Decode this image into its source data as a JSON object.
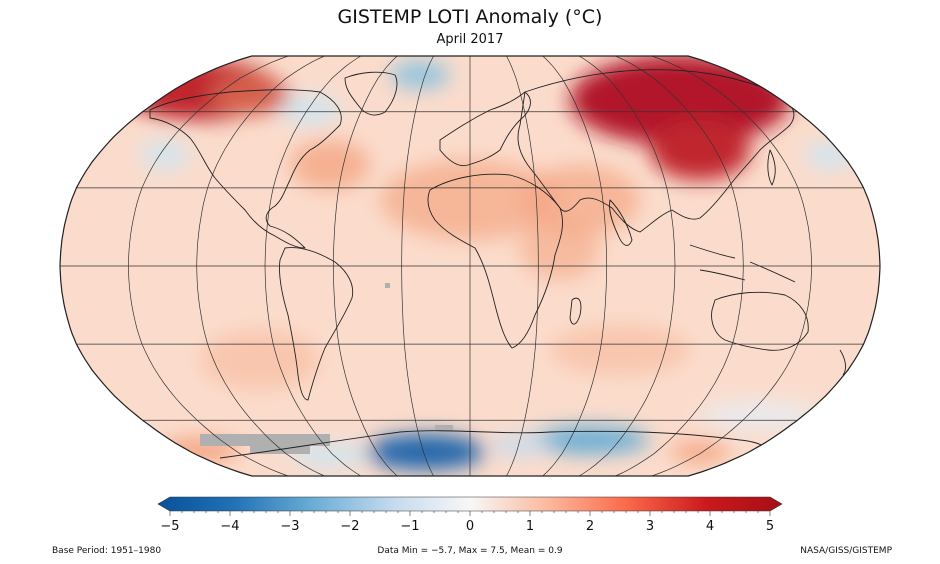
{
  "title": "GISTEMP LOTI Anomaly (°C)",
  "subtitle": "April 2017",
  "colorbar": {
    "ticks": [
      "−5",
      "−4",
      "−3",
      "−2",
      "−1",
      "0",
      "1",
      "2",
      "3",
      "4",
      "5"
    ],
    "min": -5,
    "max": 5,
    "colors": [
      "#08519c",
      "#2171b5",
      "#6baed6",
      "#c6dbef",
      "#f7f7f7",
      "#fcbba1",
      "#fb6a4a",
      "#cb181d",
      "#a50f15"
    ]
  },
  "footer": {
    "left": "Base Period: 1951–1980",
    "center": "Data Min = −5.7, Max = 7.5, Mean = 0.9",
    "right": "NASA/GISS/GISTEMP"
  },
  "map": {
    "projection": "Robinson",
    "ocean_base_color": "#fbdccc",
    "missing_color": "#b0b0b0"
  }
}
